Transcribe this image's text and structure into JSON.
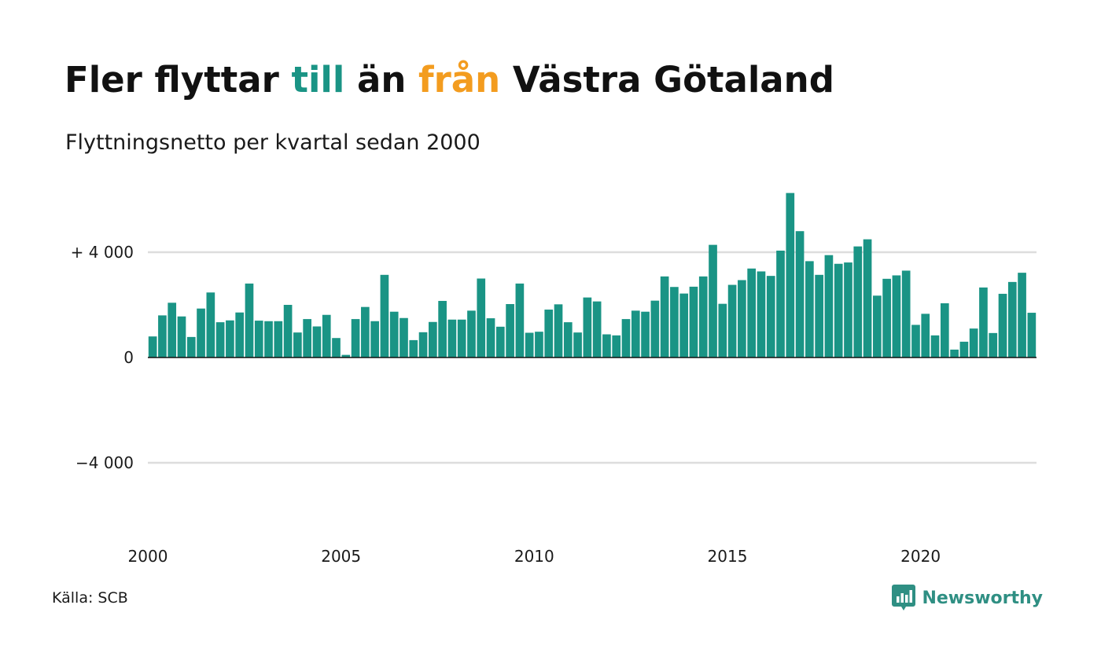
{
  "title": {
    "part1": "Fler flyttar ",
    "till": "till",
    "part2": " än ",
    "fran": "från",
    "part3": " Västra Götaland"
  },
  "subtitle": "Flyttningsnetto per kvartal sedan 2000",
  "source": "Källa: SCB",
  "brand": {
    "name": "Newsworthy",
    "icon": "newsworthy-logo-icon"
  },
  "colors": {
    "till": "#1a9485",
    "fran": "#f39c1f",
    "bar": "#1a9485",
    "grid": "#dddddd",
    "baseline": "#111111",
    "brand": "#2f8f83"
  },
  "chart_data": {
    "type": "bar",
    "ylim": [
      -8000,
      6500
    ],
    "yticks": [
      {
        "value": 4000,
        "label": "+ 4 000"
      },
      {
        "value": 0,
        "label": "0"
      },
      {
        "value": -4000,
        "label": "−4 000"
      }
    ],
    "xticks": [
      "2000",
      "2005",
      "2010",
      "2015",
      "2020"
    ],
    "grid": true,
    "frequency": "quarterly",
    "start": "2000 Q1",
    "values": [
      800,
      1600,
      2080,
      1560,
      780,
      1860,
      2470,
      1340,
      1410,
      1710,
      2810,
      1400,
      1380,
      1380,
      2000,
      950,
      1460,
      1180,
      1620,
      740,
      100,
      1460,
      1920,
      1380,
      3140,
      1740,
      1500,
      660,
      960,
      1350,
      2150,
      1440,
      1440,
      1780,
      3000,
      1490,
      1170,
      2030,
      2810,
      940,
      980,
      1820,
      2020,
      1340,
      950,
      2280,
      2130,
      880,
      840,
      1460,
      1780,
      1740,
      2160,
      3080,
      2680,
      2430,
      2690,
      3080,
      4280,
      2040,
      2760,
      2940,
      3380,
      3270,
      3100,
      4060,
      6250,
      4800,
      3660,
      3140,
      3890,
      3560,
      3610,
      4220,
      4490,
      2350,
      2990,
      3120,
      3300,
      1240,
      1660,
      840,
      2060,
      300,
      600,
      1100,
      2660,
      930,
      2420,
      2870,
      3220,
      1700
    ]
  }
}
